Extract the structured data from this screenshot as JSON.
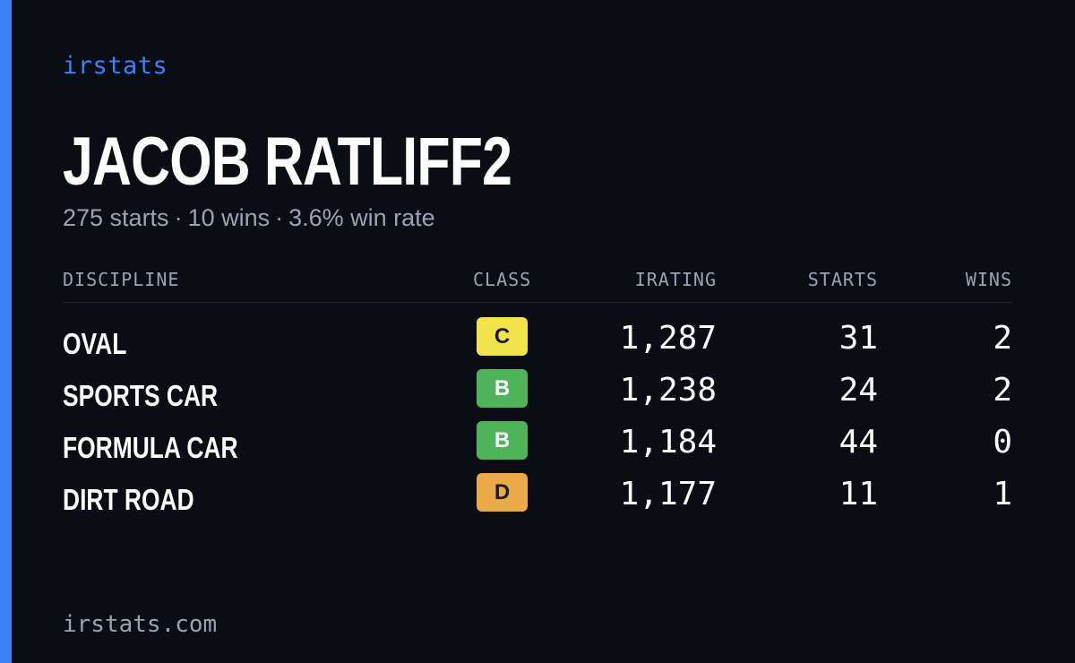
{
  "brand": "irstats",
  "player": {
    "name": "JACOB RATLIFF2",
    "starts_text": "275 starts",
    "wins_text": "10 wins",
    "winrate_text": "3.6% win rate",
    "separator": "·"
  },
  "table": {
    "headers": {
      "discipline": "DISCIPLINE",
      "class": "CLASS",
      "irating": "IRATING",
      "starts": "STARTS",
      "wins": "WINS"
    },
    "rows": [
      {
        "discipline": "OVAL",
        "class": "C",
        "class_color": "#f2e34c",
        "irating": "1,287",
        "starts": "31",
        "wins": "2"
      },
      {
        "discipline": "SPORTS CAR",
        "class": "B",
        "class_color": "#4fb35a",
        "irating": "1,238",
        "starts": "24",
        "wins": "2"
      },
      {
        "discipline": "FORMULA CAR",
        "class": "B",
        "class_color": "#4fb35a",
        "irating": "1,184",
        "starts": "44",
        "wins": "0"
      },
      {
        "discipline": "DIRT ROAD",
        "class": "D",
        "class_color": "#eba94a",
        "irating": "1,177",
        "starts": "11",
        "wins": "1"
      }
    ]
  },
  "footer": "irstats.com",
  "colors": {
    "background": "#0a0d14",
    "accent": "#3b82f6",
    "muted_text": "#9aa3b4"
  }
}
